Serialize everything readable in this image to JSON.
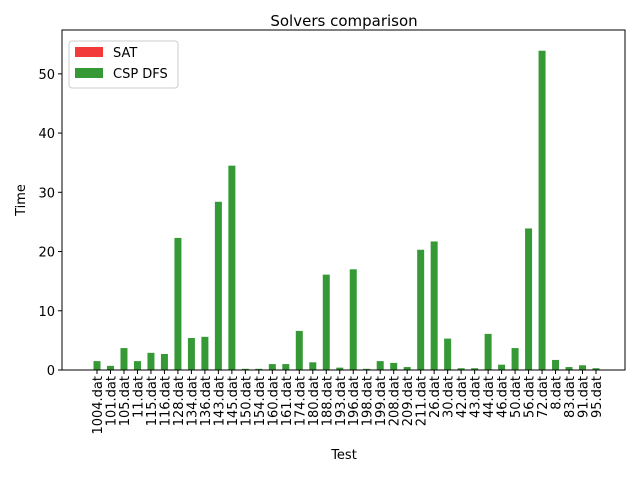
{
  "chart_data": {
    "type": "bar",
    "title": "Solvers comparison",
    "x_label": "Test",
    "y_label": "Time",
    "categories": [
      "1004.dat",
      "101.dat",
      "105.dat",
      "11.dat",
      "115.dat",
      "116.dat",
      "128.dat",
      "134.dat",
      "136.dat",
      "143.dat",
      "145.dat",
      "150.dat",
      "154.dat",
      "160.dat",
      "161.dat",
      "174.dat",
      "180.dat",
      "188.dat",
      "193.dat",
      "196.dat",
      "198.dat",
      "199.dat",
      "208.dat",
      "209.dat",
      "211.dat",
      "26.dat",
      "30.dat",
      "42.dat",
      "43.dat",
      "44.dat",
      "46.dat",
      "50.dat",
      "56.dat",
      "72.dat",
      "8.dat",
      "83.dat",
      "91.dat",
      "95.dat"
    ],
    "series": [
      {
        "name": "SAT",
        "color": "#f23a3a",
        "values": [
          0,
          0,
          0,
          0,
          0,
          0,
          0,
          0,
          0,
          0,
          0,
          0,
          0,
          0,
          0,
          0,
          0,
          0,
          0,
          0,
          0,
          0,
          0,
          0,
          0,
          0,
          0,
          0,
          0,
          0,
          0,
          0,
          0,
          0,
          0,
          0,
          0,
          0
        ]
      },
      {
        "name": "CSP DFS",
        "color": "#359a35",
        "values": [
          1.5,
          0.7,
          3.7,
          1.5,
          2.9,
          2.7,
          22.3,
          5.4,
          5.6,
          28.4,
          34.5,
          0.2,
          0.2,
          1.0,
          1.0,
          6.6,
          1.3,
          16.1,
          0.4,
          17.0,
          0.2,
          1.5,
          1.2,
          0.5,
          20.3,
          21.7,
          5.3,
          0.3,
          0.3,
          6.1,
          0.9,
          3.7,
          23.9,
          53.9,
          1.7,
          0.5,
          0.8,
          0.3
        ]
      }
    ],
    "ylim": [
      0,
      57.4
    ],
    "yticks": [
      0,
      10,
      20,
      30,
      40,
      50
    ],
    "legend": "upper left"
  }
}
